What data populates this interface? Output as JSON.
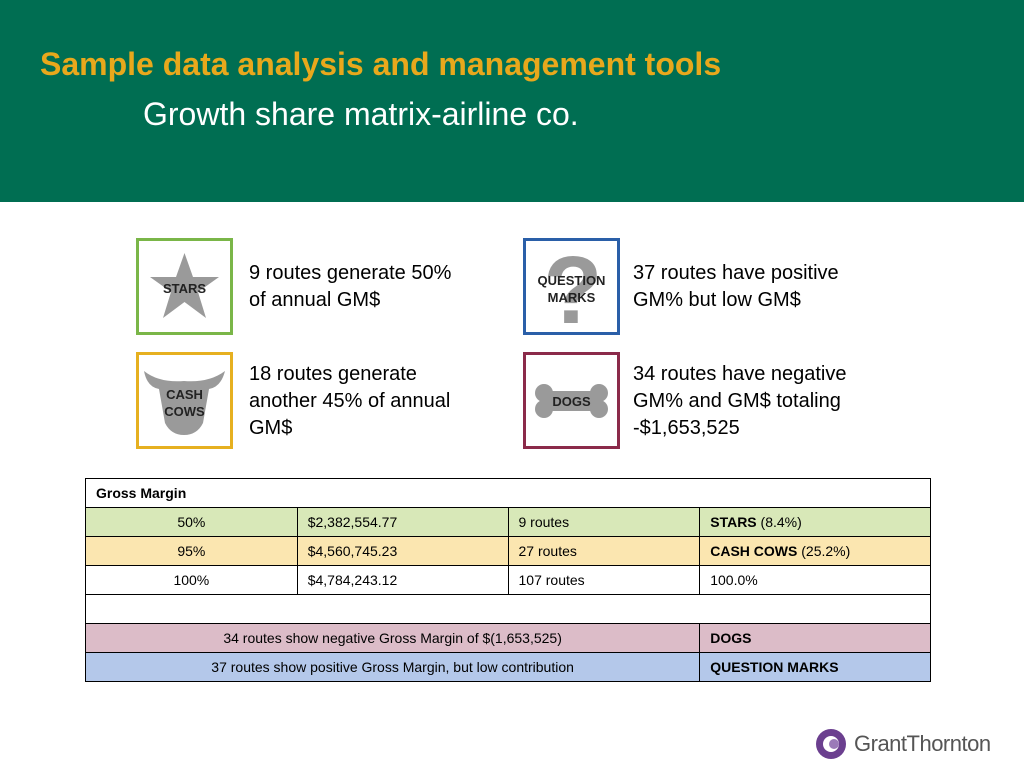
{
  "header": {
    "title": "Sample data analysis and management tools",
    "subtitle": "Growth share matrix-airline co."
  },
  "quadrants": [
    {
      "icon_label": [
        "STARS"
      ],
      "text": [
        "9 routes generate 50%",
        "of annual GM$"
      ]
    },
    {
      "icon_label": [
        "QUESTION",
        "MARKS"
      ],
      "text": [
        "37 routes have positive",
        "GM% but low GM$"
      ]
    },
    {
      "icon_label": [
        "CASH",
        "COWS"
      ],
      "text": [
        "18 routes generate",
        "another 45% of annual",
        "GM$"
      ]
    },
    {
      "icon_label": [
        "DOGS"
      ],
      "text": [
        "34 routes have negative",
        "GM% and GM$ totaling",
        "-$1,653,525"
      ]
    }
  ],
  "table": {
    "rows": [
      [
        "Gross Margin"
      ],
      [
        "50%",
        "$2,382,554.77",
        "9 routes",
        [
          "STARS",
          " (8.4%)"
        ]
      ],
      [
        "95%",
        "$4,560,745.23",
        "27 routes",
        [
          "CASH COWS",
          " (25.2%)"
        ]
      ],
      [
        "100%",
        "$4,784,243.12",
        "107 routes",
        "100.0%"
      ],
      [],
      [
        "34 routes show negative Gross Margin of $(1,653,525)",
        "DOGS"
      ],
      [
        "37 routes show positive Gross Margin, but low contribution",
        "QUESTION MARKS"
      ]
    ]
  },
  "logo": "GrantThornton"
}
